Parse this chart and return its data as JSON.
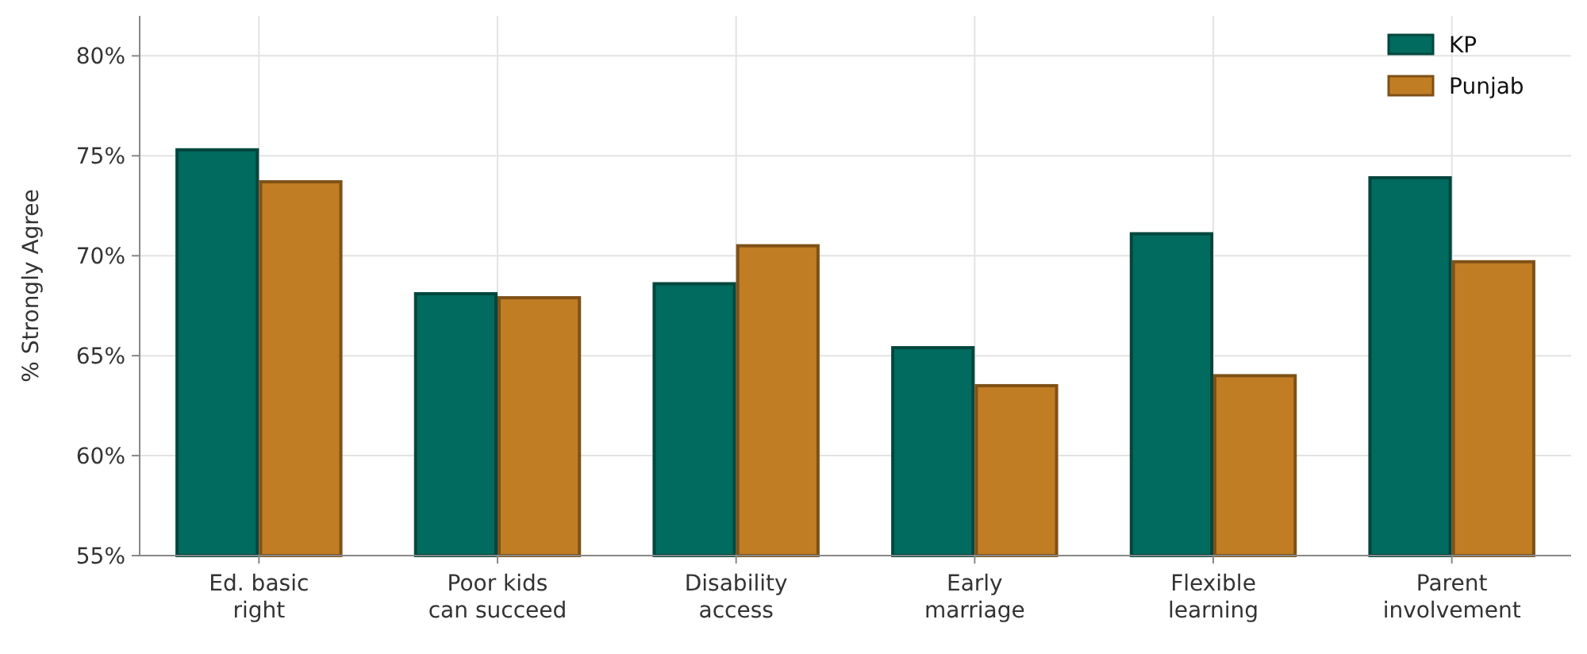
{
  "chart_data": {
    "type": "bar",
    "ylabel": "% Strongly Agree",
    "categories": [
      "Ed. basic right",
      "Poor kids can succeed",
      "Disability access",
      "Early marriage",
      "Flexible learning",
      "Parent involvement"
    ],
    "series": [
      {
        "name": "KP",
        "color": "#006b5e",
        "values": [
          75.3,
          68.1,
          68.6,
          65.4,
          71.1,
          73.9
        ]
      },
      {
        "name": "Punjab",
        "color": "#c17d24",
        "values": [
          73.7,
          67.9,
          70.5,
          63.5,
          64.0,
          69.7
        ]
      }
    ],
    "ylim": [
      55,
      82
    ],
    "yticks": [
      {
        "value": 55,
        "label": "55%"
      },
      {
        "value": 60,
        "label": "60%"
      },
      {
        "value": 65,
        "label": "65%"
      },
      {
        "value": 70,
        "label": "70%"
      },
      {
        "value": 75,
        "label": "75%"
      },
      {
        "value": 80,
        "label": "80%"
      }
    ],
    "grid": true,
    "legend": "top right"
  }
}
